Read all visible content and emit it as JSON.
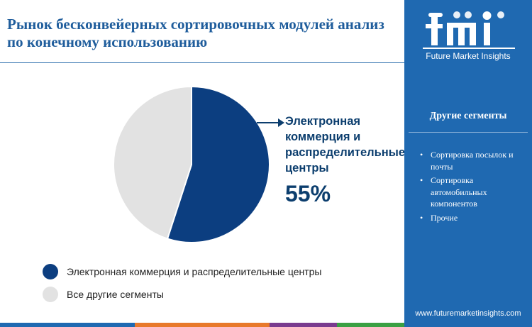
{
  "title": "Рынок бесконвейерных сортировочных модулей анализ по конечному использованию",
  "chart_data": {
    "type": "pie",
    "categories": [
      "Электронная коммерция и распределительные центры",
      "Все другие сегменты"
    ],
    "values": [
      55,
      45
    ],
    "colors": [
      "#0c3e80",
      "#e2e2e2"
    ],
    "highlight": {
      "label": "Электронная коммерция и распределительные центры",
      "value": "55%"
    }
  },
  "legend": [
    {
      "label": "Электронная коммерция и распределительные центры",
      "color": "#0c3e80"
    },
    {
      "label": "Все другие сегменты",
      "color": "#e2e2e2"
    }
  ],
  "sidebar": {
    "brand": "Future Market Insights",
    "heading": "Другие сегменты",
    "items": [
      "Сортировка посылок и почты",
      "Сортировка автомобильных компонентов",
      "Прочие"
    ],
    "website": "www.futuremarketinsights.com",
    "background": "#1f69b1"
  },
  "bottom_bar_colors": [
    "#1f69b1",
    "#e8792b",
    "#7a3b8f",
    "#3aa043"
  ]
}
